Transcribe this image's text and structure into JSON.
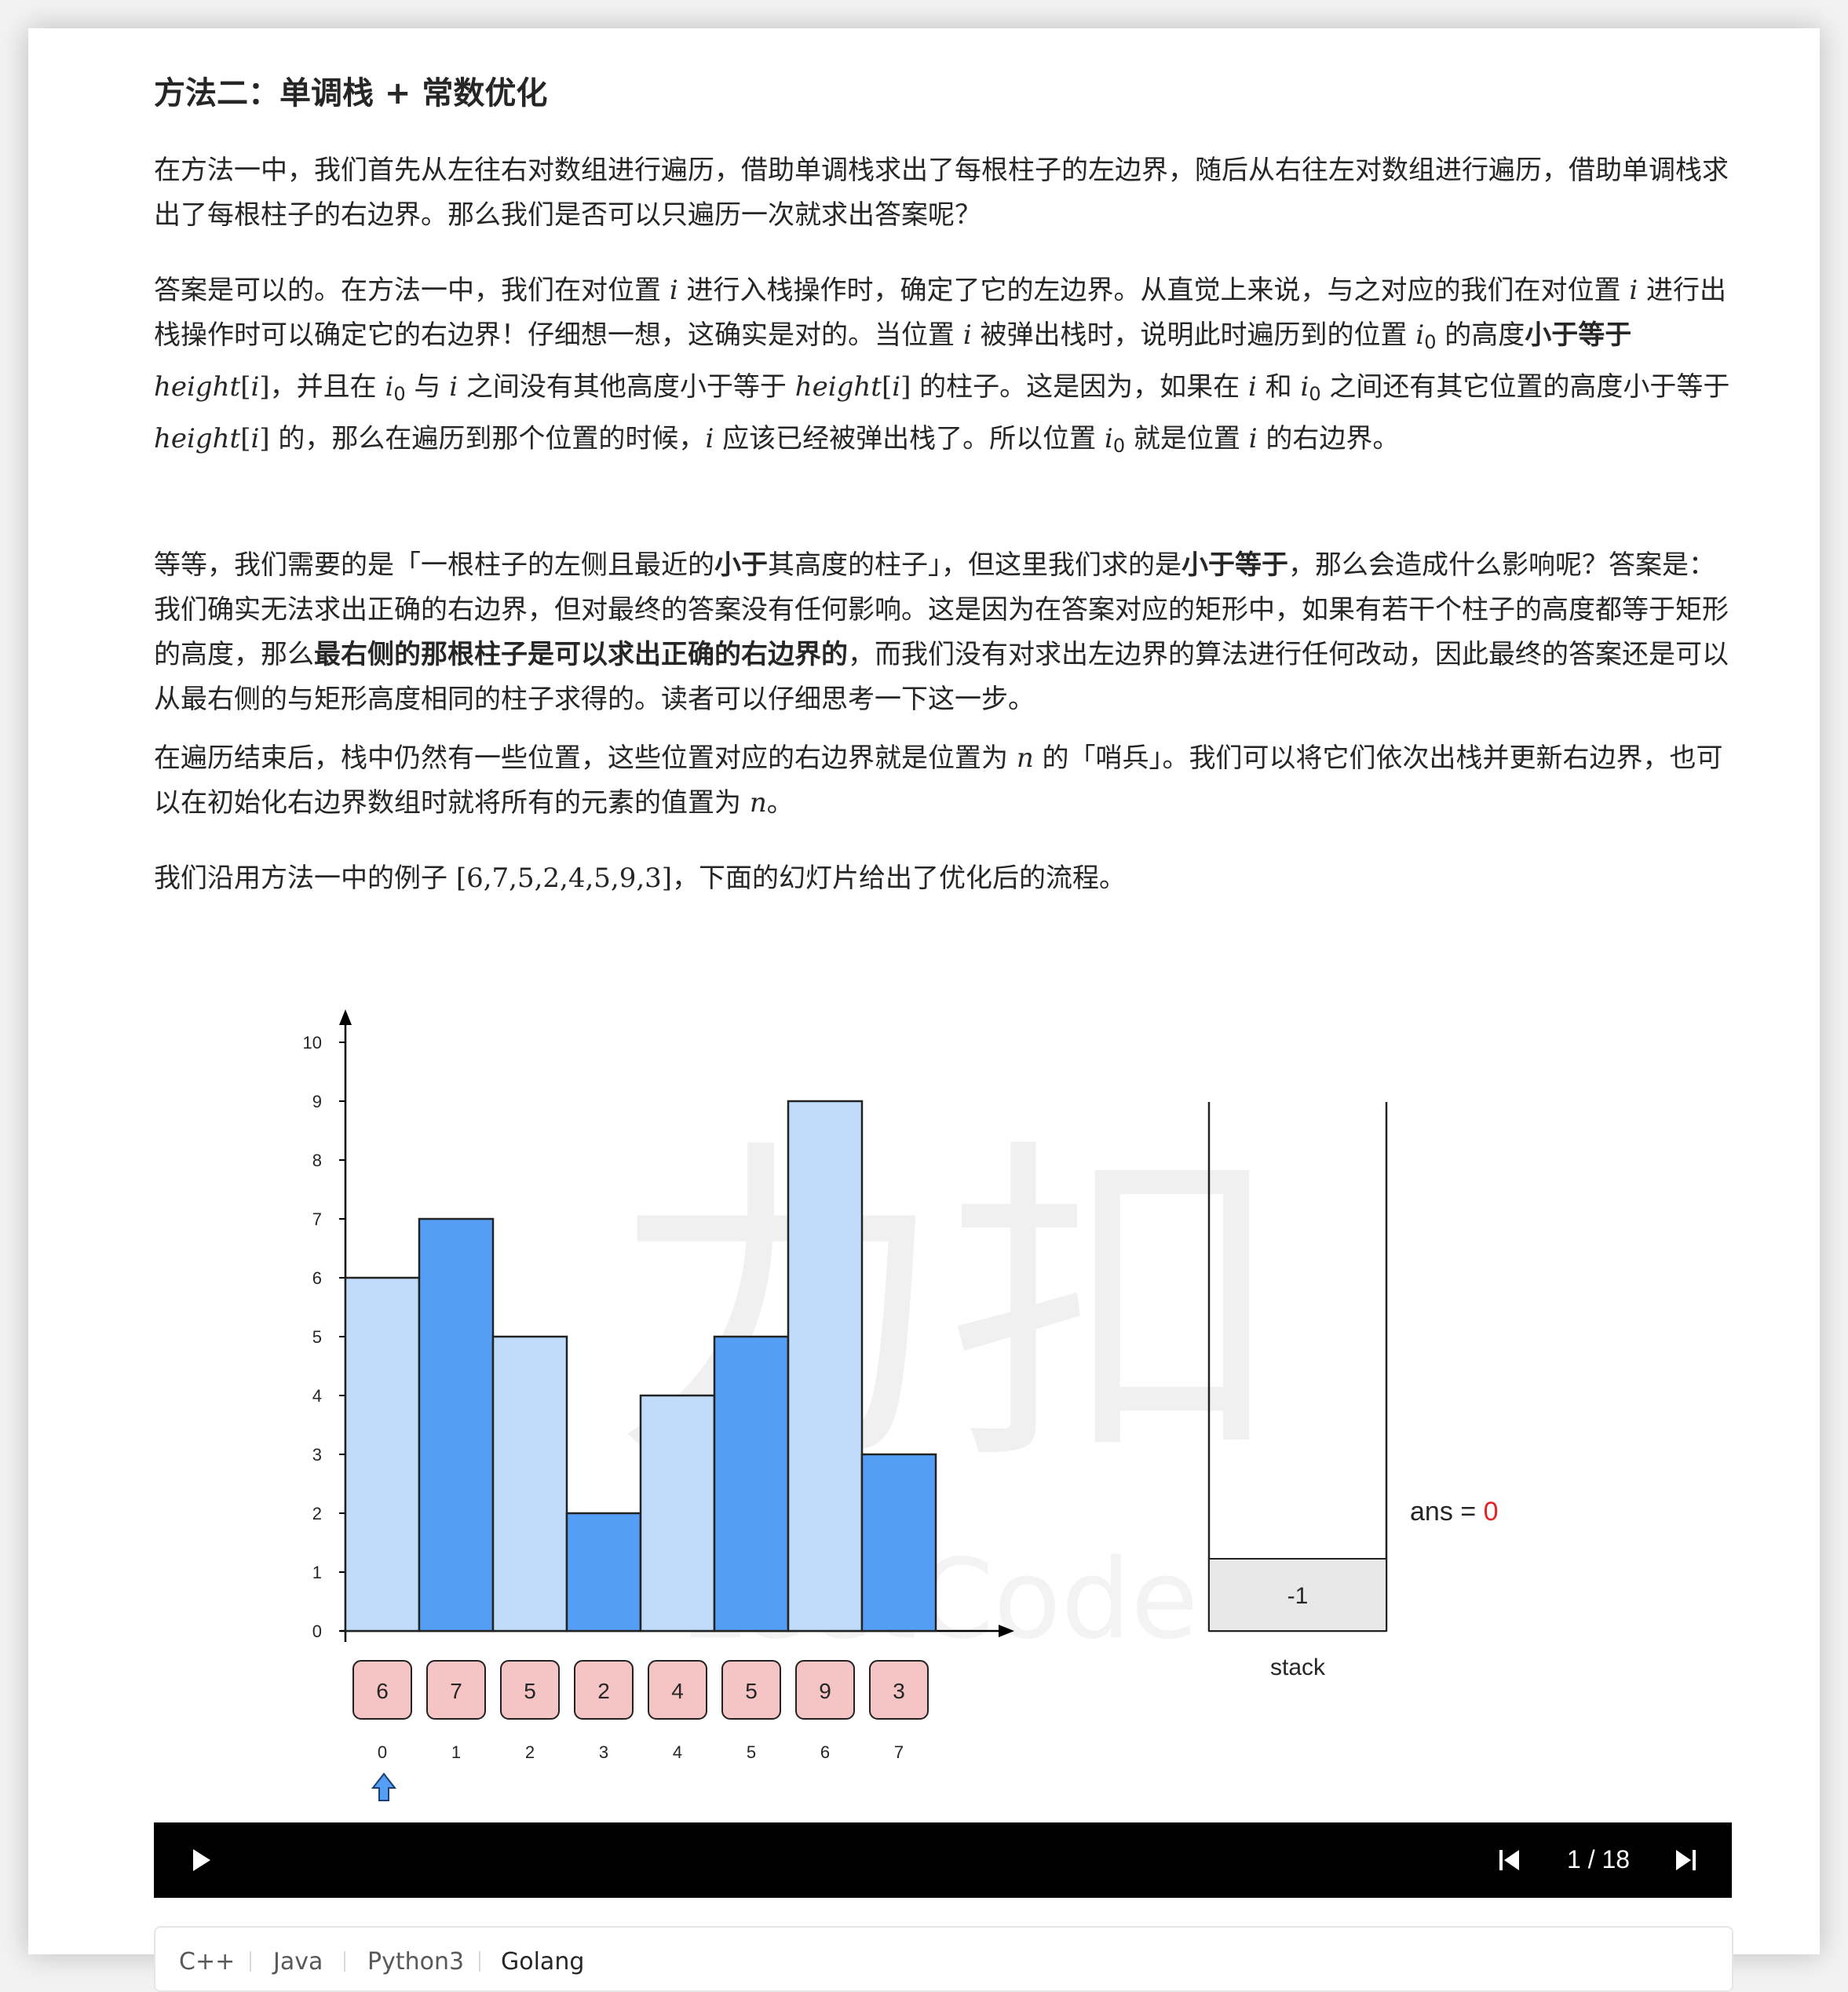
{
  "section": {
    "title": "方法二：单调栈 + 常数优化"
  },
  "para1": "在方法一中，我们首先从左往右对数组进行遍历，借助单调栈求出了每根柱子的左边界，随后从右往左对数组进行遍历，借助单调栈求出了每根柱子的右边界。那么我们是否可以只遍历一次就求出答案呢？",
  "para2": {
    "s1": "答案是可以的。在方法一中，我们在对位置 ",
    "m_i": "i",
    "s2": " 进行入栈操作时，确定了它的左边界。从直觉上来说，与之对应的我们在对位置 ",
    "s3": " 进行出栈操作时可以确定它的右边界！仔细想一想，这确实是对的。当位置 ",
    "s4": " 被弹出栈时，说明此时遍历到的位置 ",
    "m_i0": "i",
    "m_i0_sub": "0",
    "s5": " 的高度",
    "b1": "小于等于",
    "s6": " ",
    "m_height": "height",
    "s7": "，并且在 ",
    "s8": " 与 ",
    "s9": " 之间没有其他高度小于等于 ",
    "s10": " 的柱子。这是因为，如果在 ",
    "s11": " 和 ",
    "s12": " 之间还有其它位置的高度小于等于 ",
    "s13": " 的，那么在遍历到那个位置的时候，",
    "s14": " 应该已经被弹出栈了。所以位置 ",
    "s15": " 就是位置 ",
    "s16": " 的右边界。"
  },
  "para3": {
    "s1": "等等，我们需要的是「一根柱子的左侧且最近的",
    "b1": "小于",
    "s2": "其高度的柱子」，但这里我们求的是",
    "b2": "小于等于",
    "s3": "，那么会造成什么影响呢？答案是：我们确实无法求出正确的右边界，但对最终的答案没有任何影响。这是因为在答案对应的矩形中，如果有若干个柱子的高度都等于矩形的高度，那么",
    "b3": "最右侧的那根柱子是可以求出正确的右边界的",
    "s4": "，而我们没有对求出左边界的算法进行任何改动，因此最终的答案还是可以从最右侧的与矩形高度相同的柱子求得的。读者可以仔细思考一下这一步。"
  },
  "para4": {
    "s1": "在遍历结束后，栈中仍然有一些位置，这些位置对应的右边界就是位置为 ",
    "m_n": "n",
    "s2": " 的「哨兵」。我们可以将它们依次出栈并更新右边界，也可以在初始化右边界数组时就将所有的元素的值置为 ",
    "s3": "。"
  },
  "para5": {
    "s1": "我们沿用方法一中的例子 ",
    "m_arr": "[6,7,5,2,4,5,9,3]",
    "s2": "，下面的幻灯片给出了优化后的流程。"
  },
  "chart_data": {
    "type": "bar",
    "categories": [
      "0",
      "1",
      "2",
      "3",
      "4",
      "5",
      "6",
      "7"
    ],
    "values": [
      6,
      7,
      5,
      2,
      4,
      5,
      9,
      3
    ],
    "ylim": [
      0,
      10
    ],
    "yticks": [
      "0",
      "1",
      "2",
      "3",
      "4",
      "5",
      "6",
      "7",
      "8",
      "9",
      "10"
    ],
    "array_boxes": [
      "6",
      "7",
      "5",
      "2",
      "4",
      "5",
      "9",
      "3"
    ],
    "index_labels": [
      "0",
      "1",
      "2",
      "3",
      "4",
      "5",
      "6",
      "7"
    ],
    "pointer_index": 0,
    "colors": {
      "light_bar": "#c0dcfa",
      "dark_bar": "#549ff5",
      "box_fill": "#f5c4c4",
      "arrow": "#549ff5",
      "ans_value": "#e62222"
    },
    "stack_items": [
      "-1"
    ],
    "stack_label": "stack",
    "ans_label": "ans = ",
    "ans_value": "0",
    "watermark_cn": "力扣",
    "watermark_en": "LeetCode"
  },
  "player": {
    "play_icon": "play-icon",
    "prev_icon": "skip-previous-icon",
    "next_icon": "skip-next-icon",
    "counter": "1 / 18"
  },
  "code_tabs": [
    "C++",
    "Java",
    "Python3",
    "Golang"
  ]
}
